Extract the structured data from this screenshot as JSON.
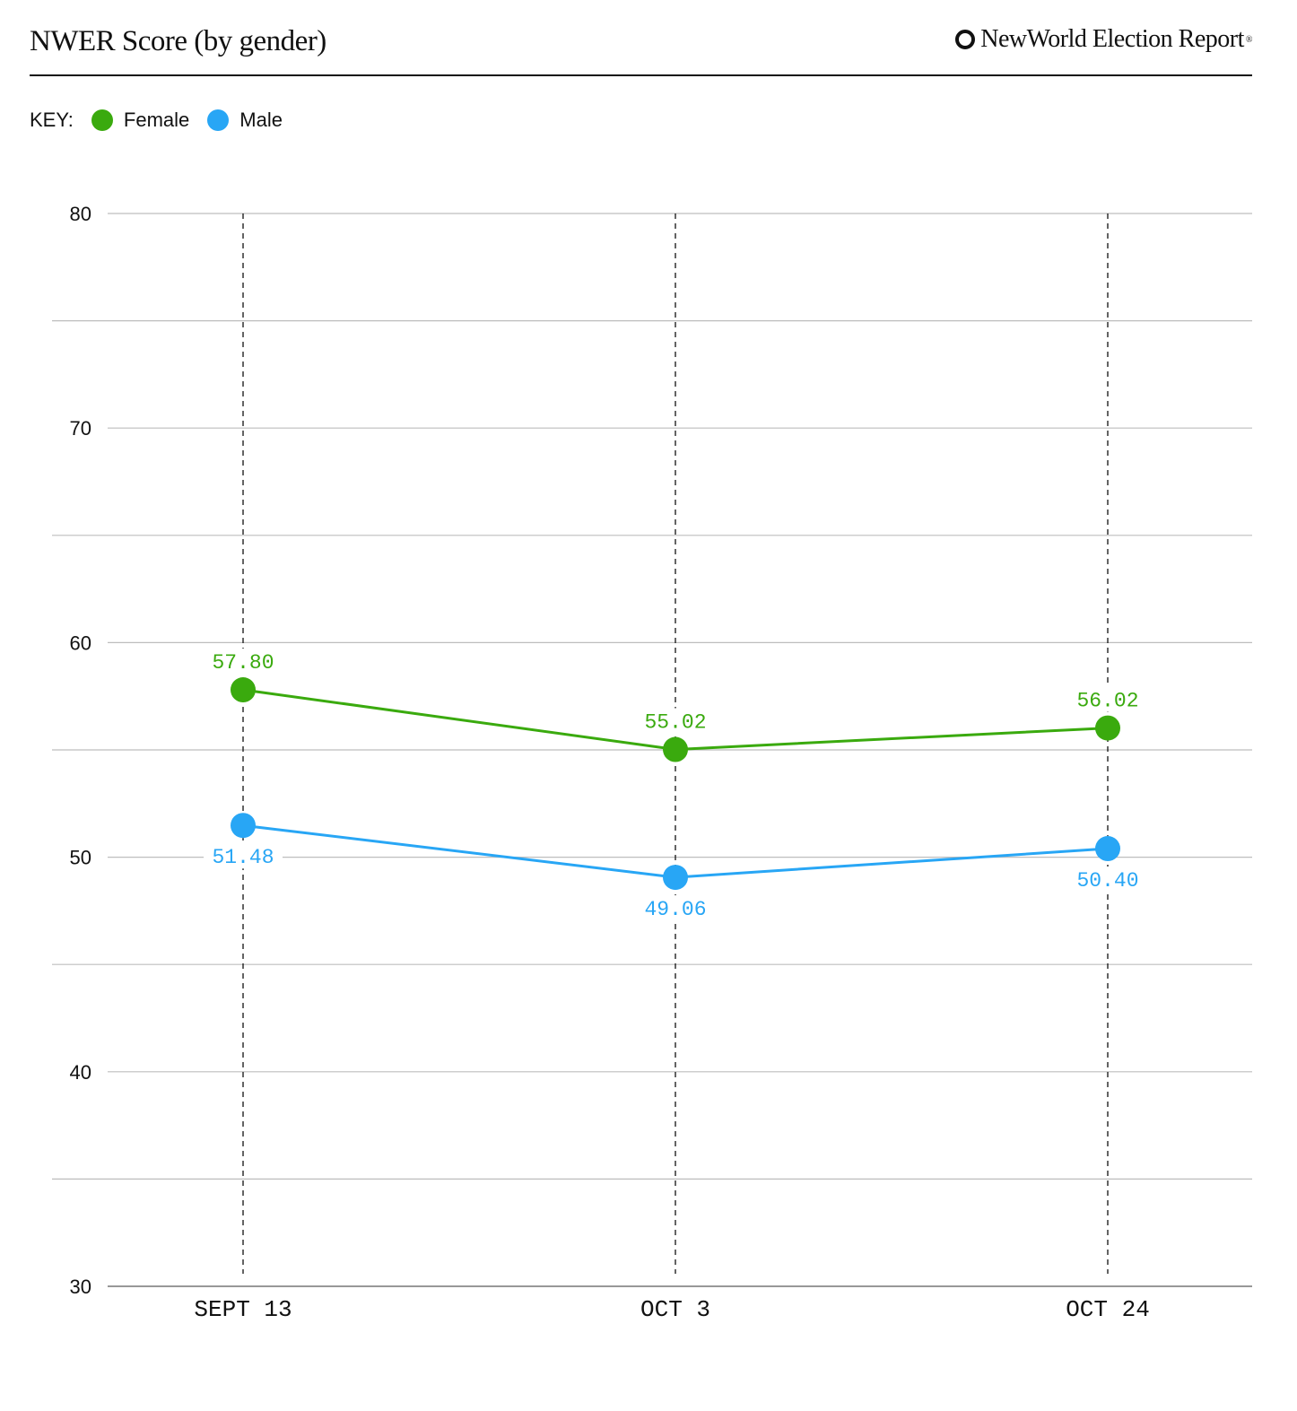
{
  "header": {
    "title": "NWER Score (by gender)",
    "brand": "NewWorld Election Report",
    "brand_mark": "®"
  },
  "key": {
    "label": "KEY:"
  },
  "chart_data": {
    "type": "line",
    "categories": [
      "SEPT 13",
      "OCT 3",
      "OCT 24"
    ],
    "ylim": [
      30,
      80
    ],
    "yticks": [
      30,
      40,
      50,
      60,
      70,
      80
    ],
    "grid": true,
    "legend_position": "top-left",
    "series": [
      {
        "name": "Female",
        "color": "#3aaa0e",
        "values": [
          57.8,
          55.02,
          56.02
        ],
        "labels": [
          "57.80",
          "55.02",
          "56.02"
        ],
        "label_side": [
          "above",
          "above",
          "above"
        ]
      },
      {
        "name": "Male",
        "color": "#28a6f5",
        "values": [
          51.48,
          49.06,
          50.4
        ],
        "labels": [
          "51.48",
          "49.06",
          "50.40"
        ],
        "label_side": [
          "below",
          "below",
          "below"
        ]
      }
    ]
  }
}
